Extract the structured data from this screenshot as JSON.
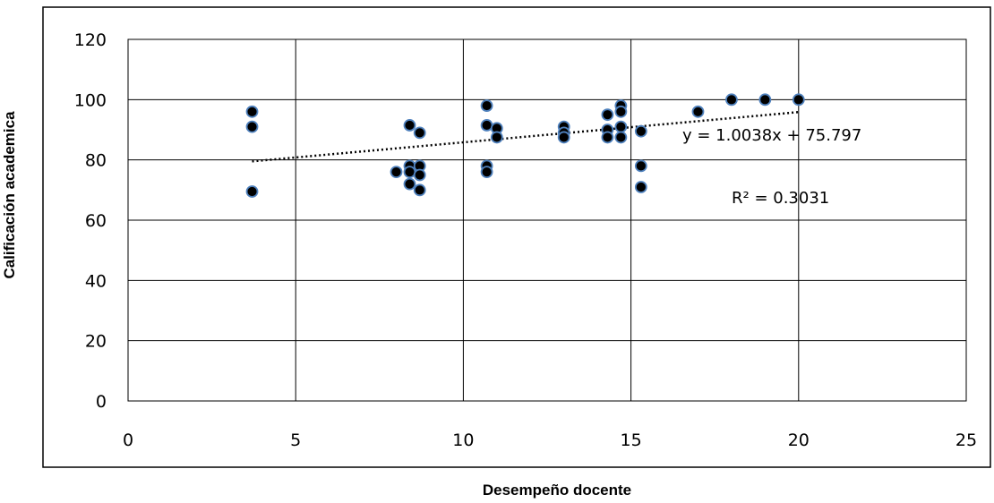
{
  "chart_data": {
    "type": "scatter",
    "title": "",
    "xlabel": "Desempeño docente",
    "ylabel": "Calificación academica",
    "xlim": [
      0,
      25
    ],
    "ylim": [
      0,
      120
    ],
    "x_ticks": [
      "0",
      "5",
      "10",
      "15",
      "20",
      "25"
    ],
    "y_ticks": [
      "0",
      "20",
      "40",
      "60",
      "80",
      "100",
      "120"
    ],
    "grid": true,
    "legend": "none",
    "marker_color": "#000000",
    "marker_edge_color": "#4f81bd",
    "trendline_color": "#000000",
    "points": [
      {
        "x": 3.7,
        "y": 96
      },
      {
        "x": 3.7,
        "y": 91
      },
      {
        "x": 3.7,
        "y": 69.5
      },
      {
        "x": 8.0,
        "y": 76
      },
      {
        "x": 8.4,
        "y": 91.5
      },
      {
        "x": 8.4,
        "y": 78
      },
      {
        "x": 8.4,
        "y": 76
      },
      {
        "x": 8.4,
        "y": 72
      },
      {
        "x": 8.7,
        "y": 89
      },
      {
        "x": 8.7,
        "y": 78
      },
      {
        "x": 8.7,
        "y": 75
      },
      {
        "x": 8.7,
        "y": 70
      },
      {
        "x": 10.7,
        "y": 98
      },
      {
        "x": 10.7,
        "y": 91.5
      },
      {
        "x": 10.7,
        "y": 78
      },
      {
        "x": 10.7,
        "y": 76
      },
      {
        "x": 11.0,
        "y": 90.5
      },
      {
        "x": 11.0,
        "y": 87.5
      },
      {
        "x": 13.0,
        "y": 91
      },
      {
        "x": 13.0,
        "y": 89
      },
      {
        "x": 13.0,
        "y": 87.5
      },
      {
        "x": 14.3,
        "y": 95
      },
      {
        "x": 14.3,
        "y": 90
      },
      {
        "x": 14.3,
        "y": 87.5
      },
      {
        "x": 14.7,
        "y": 98
      },
      {
        "x": 14.7,
        "y": 96
      },
      {
        "x": 14.7,
        "y": 91
      },
      {
        "x": 14.7,
        "y": 87.5
      },
      {
        "x": 15.3,
        "y": 89.5
      },
      {
        "x": 15.3,
        "y": 78
      },
      {
        "x": 15.3,
        "y": 71
      },
      {
        "x": 17.0,
        "y": 96
      },
      {
        "x": 18.0,
        "y": 100
      },
      {
        "x": 19.0,
        "y": 100
      },
      {
        "x": 20.0,
        "y": 100
      }
    ],
    "trendline": {
      "type": "linear",
      "x_from": 3.7,
      "x_to": 20,
      "slope": 1.0038,
      "intercept": 75.797,
      "style": "dotted"
    },
    "annotations": {
      "equation": "y = 1.0038x + 75.797",
      "r2": "R² = 0.3031"
    }
  }
}
